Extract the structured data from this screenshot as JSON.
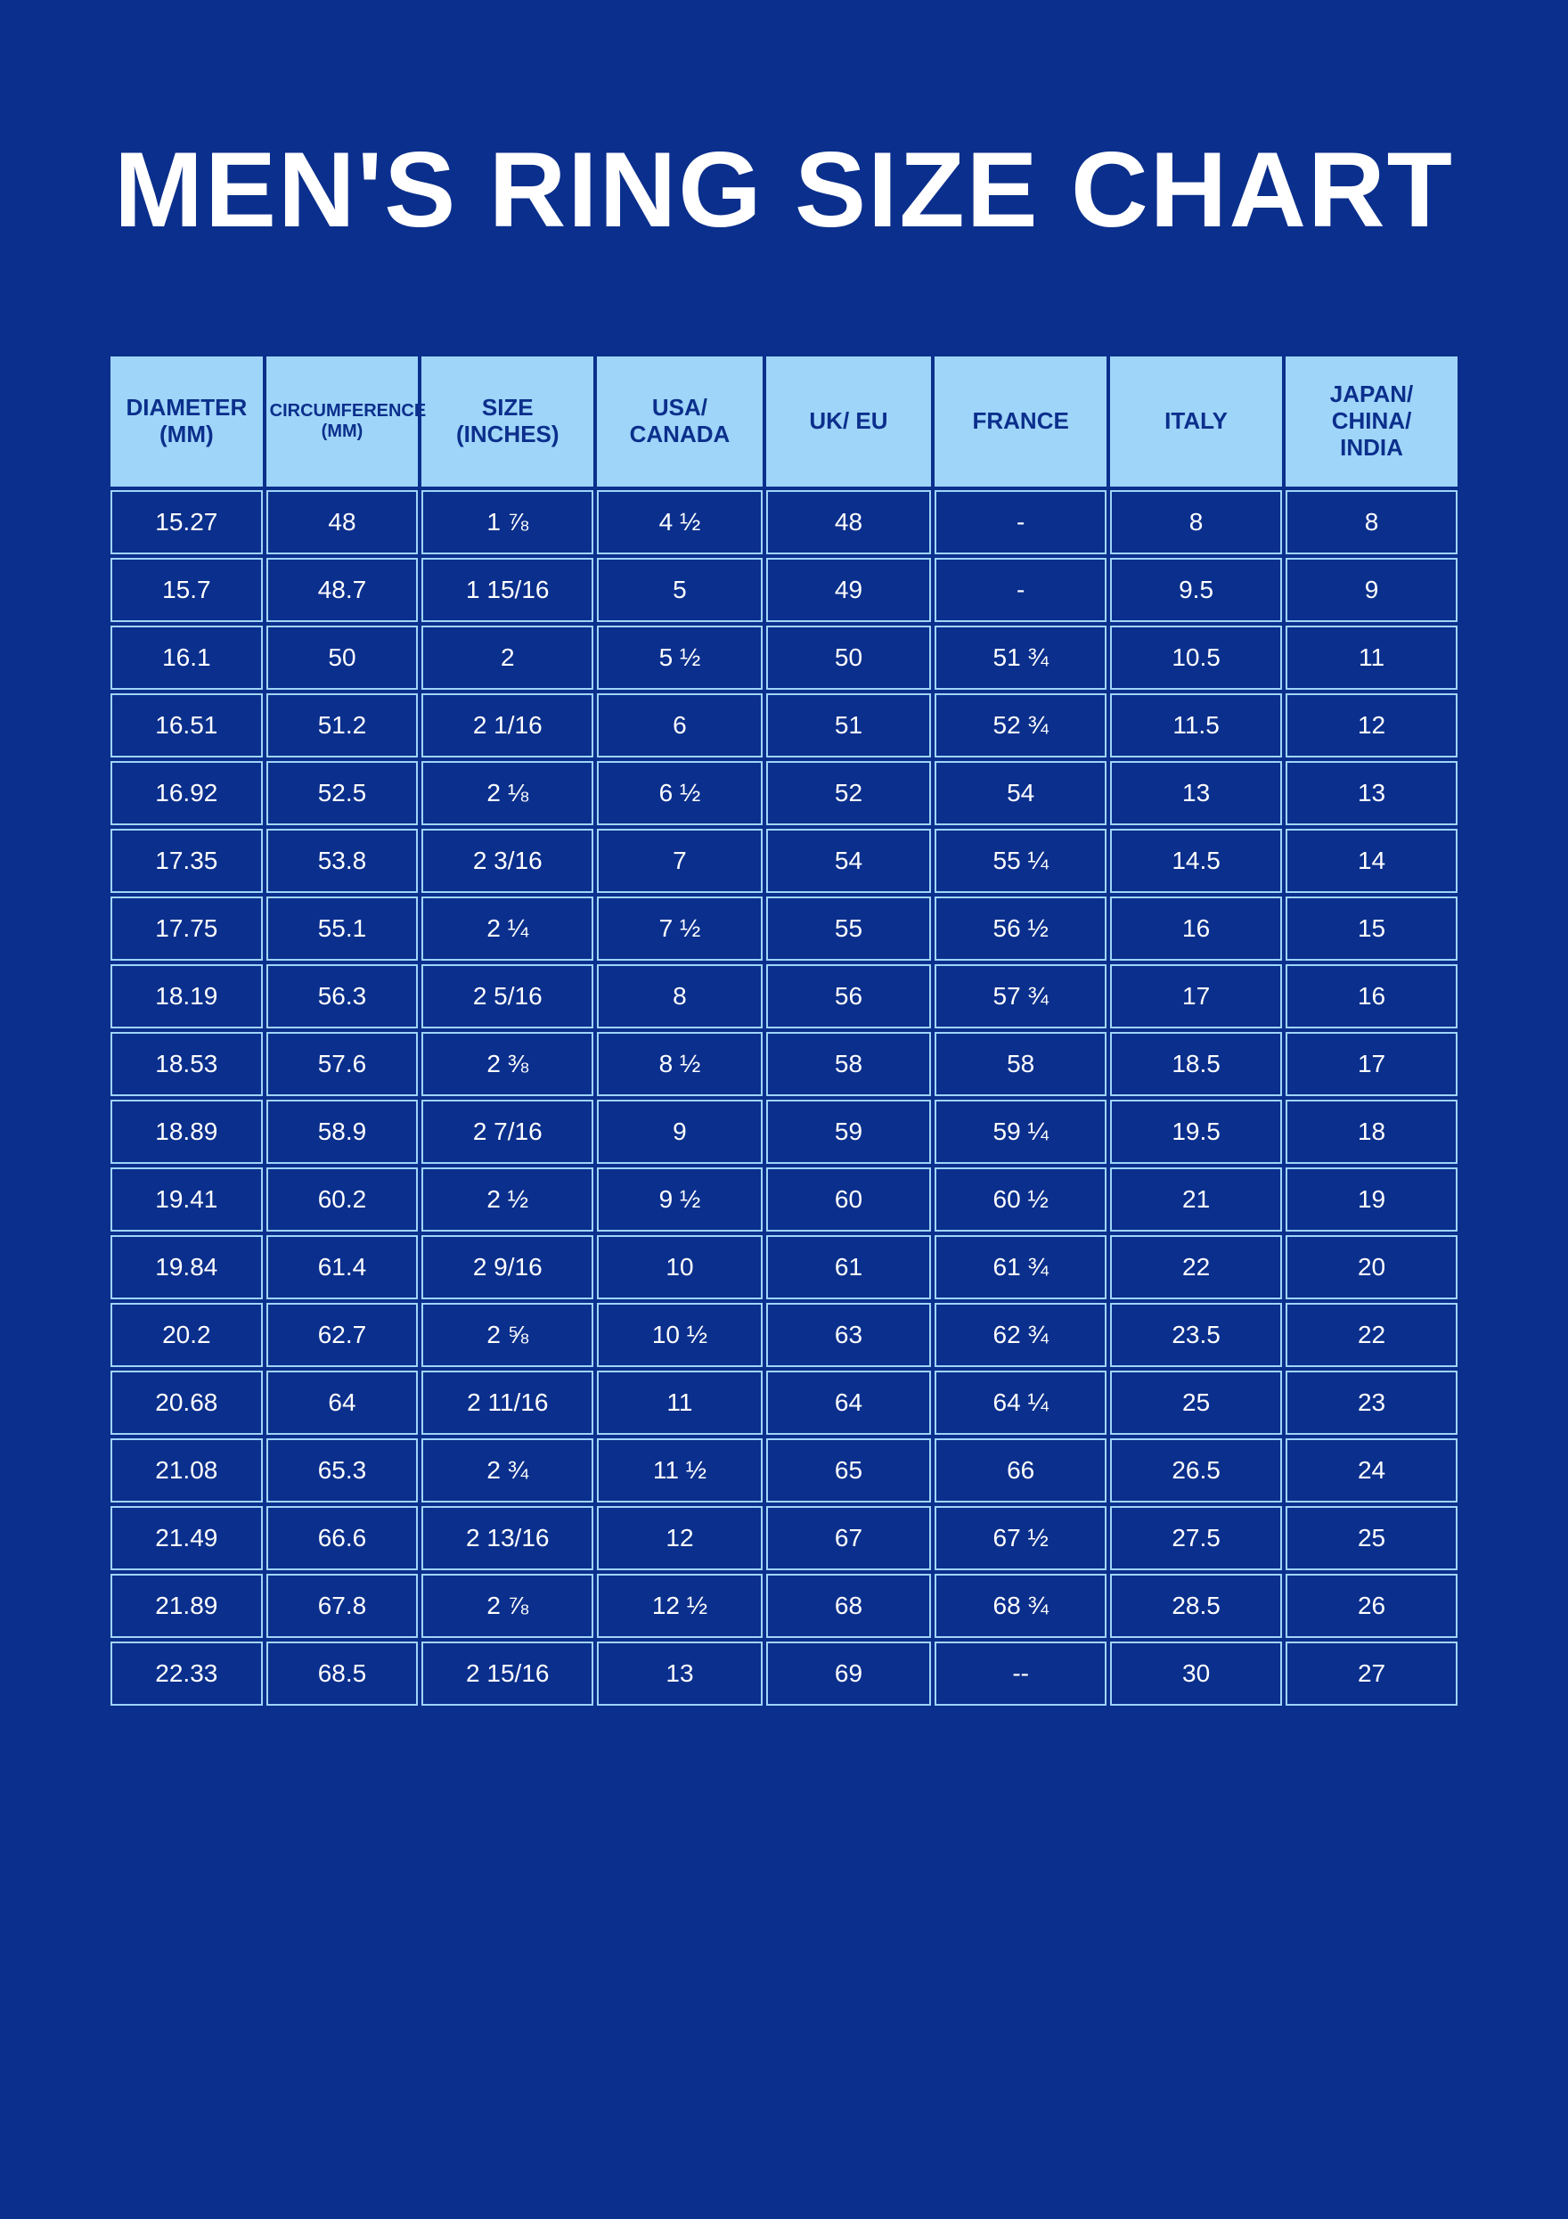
{
  "title": "MEN'S RING SIZE CHART",
  "colors": {
    "background": "#0b2f8c",
    "header_bg": "#9fd5f8",
    "header_text": "#0b2f8c",
    "cell_border": "#9fd5f8",
    "body_text": "#ffffff"
  },
  "table": {
    "columns": [
      {
        "label": "DIAMETER (MM)",
        "small": false
      },
      {
        "label": "CIRCUMFERENCE (MM)",
        "small": true
      },
      {
        "label": "SIZE (INCHES)",
        "small": false
      },
      {
        "label": "USA/ CANADA",
        "small": false
      },
      {
        "label": "UK/ EU",
        "small": false
      },
      {
        "label": "FRANCE",
        "small": false
      },
      {
        "label": "ITALY",
        "small": false
      },
      {
        "label": "JAPAN/ CHINA/ INDIA",
        "small": false
      }
    ],
    "rows": [
      [
        "15.27",
        "48",
        "1 ⅞",
        "4 ½",
        "48",
        "-",
        "8",
        "8"
      ],
      [
        "15.7",
        "48.7",
        "1 15/16",
        "5",
        "49",
        "-",
        "9.5",
        "9"
      ],
      [
        "16.1",
        "50",
        "2",
        "5 ½",
        "50",
        "51 ¾",
        "10.5",
        "11"
      ],
      [
        "16.51",
        "51.2",
        "2 1/16",
        "6",
        "51",
        "52 ¾",
        "11.5",
        "12"
      ],
      [
        "16.92",
        "52.5",
        "2 ⅛",
        "6 ½",
        "52",
        "54",
        "13",
        "13"
      ],
      [
        "17.35",
        "53.8",
        "2 3/16",
        "7",
        "54",
        "55 ¼",
        "14.5",
        "14"
      ],
      [
        "17.75",
        "55.1",
        "2 ¼",
        "7 ½",
        "55",
        "56 ½",
        "16",
        "15"
      ],
      [
        "18.19",
        "56.3",
        "2 5/16",
        "8",
        "56",
        "57 ¾",
        "17",
        "16"
      ],
      [
        "18.53",
        "57.6",
        "2 ⅜",
        "8 ½",
        "58",
        "58",
        "18.5",
        "17"
      ],
      [
        "18.89",
        "58.9",
        "2 7/16",
        "9",
        "59",
        "59 ¼",
        "19.5",
        "18"
      ],
      [
        "19.41",
        "60.2",
        "2 ½",
        "9 ½",
        "60",
        "60 ½",
        "21",
        "19"
      ],
      [
        "19.84",
        "61.4",
        "2 9/16",
        "10",
        "61",
        "61 ¾",
        "22",
        "20"
      ],
      [
        "20.2",
        "62.7",
        "2 ⅝",
        "10 ½",
        "63",
        "62 ¾",
        "23.5",
        "22"
      ],
      [
        "20.68",
        "64",
        "2 11/16",
        "11",
        "64",
        "64 ¼",
        "25",
        "23"
      ],
      [
        "21.08",
        "65.3",
        "2 ¾",
        "11 ½",
        "65",
        "66",
        "26.5",
        "24"
      ],
      [
        "21.49",
        "66.6",
        "2 13/16",
        "12",
        "67",
        "67 ½",
        "27.5",
        "25"
      ],
      [
        "21.89",
        "67.8",
        "2 ⅞",
        "12 ½",
        "68",
        "68 ¾",
        "28.5",
        "26"
      ],
      [
        "22.33",
        "68.5",
        "2 15/16",
        "13",
        "69",
        "--",
        "30",
        "27"
      ]
    ]
  }
}
